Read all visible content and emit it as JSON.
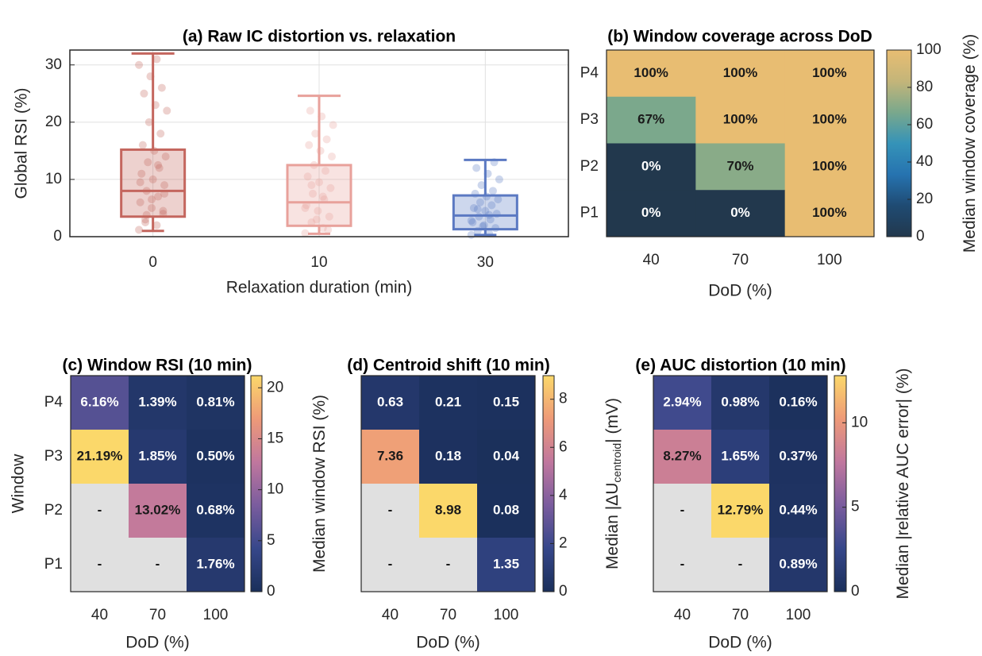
{
  "chart_data": [
    {
      "type": "box",
      "title": "(a) Raw IC distortion vs. relaxation",
      "xlabel": "Relaxation duration (min)",
      "ylabel": "Global RSI (%)",
      "categories": [
        "0",
        "10",
        "30"
      ],
      "colors": [
        "#c4665e",
        "#e8a19b",
        "#5b79c2"
      ],
      "boxes": [
        {
          "low": 1,
          "q1": 3.5,
          "median": 8,
          "q3": 15.2,
          "high": 32
        },
        {
          "low": 0.5,
          "q1": 1.9,
          "median": 6,
          "q3": 12.5,
          "high": 24.6
        },
        {
          "low": 0.3,
          "q1": 1.3,
          "median": 3.7,
          "q3": 7.2,
          "high": 13.4
        }
      ],
      "points": [
        [
          1.2,
          2,
          3,
          4,
          5,
          6,
          7,
          8,
          9,
          10,
          11,
          12,
          13,
          14,
          15,
          16,
          18,
          20,
          22,
          23,
          25,
          26,
          28,
          30,
          31,
          2.5,
          4.5,
          6.5,
          9.5,
          12.5,
          3.8,
          7.5
        ],
        [
          0.6,
          1.5,
          2.5,
          3.5,
          4.5,
          5.5,
          6.5,
          7.5,
          8.5,
          9.5,
          10.5,
          11.5,
          12.5,
          14,
          15,
          16,
          17,
          18,
          19.5,
          21,
          22,
          1.2,
          3,
          5,
          7,
          9
        ],
        [
          0.3,
          0.6,
          1,
          1.5,
          2,
          2.5,
          3,
          3.5,
          4,
          4.5,
          5,
          5.5,
          6,
          6.5,
          7,
          7.5,
          8,
          9,
          10,
          11,
          12,
          13,
          1.8,
          2.8,
          3.8,
          4.8
        ]
      ],
      "ylim": [
        0,
        32.6
      ],
      "yticks": [
        0,
        10,
        20,
        30
      ],
      "grid": true
    },
    {
      "type": "heatmap",
      "title": "(b) Window coverage across DoD",
      "xlabel": "DoD (%)",
      "cbar_label": [
        "Median window coverage (%)"
      ],
      "x_categories": [
        "40",
        "70",
        "100"
      ],
      "y_categories": [
        "P4",
        "P3",
        "P2",
        "P1"
      ],
      "values": [
        [
          100,
          100,
          100
        ],
        [
          67,
          100,
          100
        ],
        [
          0,
          70,
          100
        ],
        [
          0,
          0,
          100
        ]
      ],
      "value_labels": [
        [
          "100%",
          "100%",
          "100%"
        ],
        [
          "67%",
          "100%",
          "100%"
        ],
        [
          "0%",
          "70%",
          "100%"
        ],
        [
          "0%",
          "0%",
          "100%"
        ]
      ],
      "clim": [
        0,
        100
      ],
      "cticks": [
        0,
        20,
        40,
        60,
        80,
        100
      ],
      "colormap": [
        "#22384d",
        "#1f4b73",
        "#2673b0",
        "#3593b8",
        "#7aa88c",
        "#c4b579",
        "#e8bd72"
      ],
      "missing_color": "#e0e0e0"
    },
    {
      "type": "heatmap",
      "title": "(c) Window RSI (10 min)",
      "xlabel": "DoD (%)",
      "ylabel": "Window",
      "cbar_label": [
        "Median window RSI (%)"
      ],
      "x_categories": [
        "40",
        "70",
        "100"
      ],
      "y_categories": [
        "P4",
        "P3",
        "P2",
        "P1"
      ],
      "values": [
        [
          6.16,
          1.39,
          0.81
        ],
        [
          21.19,
          1.85,
          0.5
        ],
        [
          null,
          13.02,
          0.68
        ],
        [
          null,
          null,
          1.76
        ]
      ],
      "value_labels": [
        [
          "6.16%",
          "1.39%",
          "0.81%"
        ],
        [
          "21.19%",
          "1.85%",
          "0.50%"
        ],
        [
          "-",
          "13.02%",
          "0.68%"
        ],
        [
          "-",
          "-",
          "1.76%"
        ]
      ],
      "clim": [
        0,
        21.19
      ],
      "cticks": [
        0,
        5,
        10,
        15,
        20
      ],
      "colormap": [
        "#1a2f5a",
        "#36478a",
        "#7a5c9e",
        "#c0779e",
        "#ee9a78",
        "#fbd86a"
      ],
      "missing_color": "#e0e0e0"
    },
    {
      "type": "heatmap",
      "title": "(d) Centroid shift (10 min)",
      "xlabel": "DoD (%)",
      "cbar_label": [
        "Median |ΔU",
        "centroid",
        "| (mV)"
      ],
      "x_categories": [
        "40",
        "70",
        "100"
      ],
      "values": [
        [
          0.63,
          0.21,
          0.15
        ],
        [
          7.36,
          0.18,
          0.04
        ],
        [
          null,
          8.98,
          0.08
        ],
        [
          null,
          null,
          1.35
        ]
      ],
      "value_labels": [
        [
          "0.63",
          "0.21",
          "0.15"
        ],
        [
          "7.36",
          "0.18",
          "0.04"
        ],
        [
          "-",
          "8.98",
          "0.08"
        ],
        [
          "-",
          "-",
          "1.35"
        ]
      ],
      "clim": [
        0,
        8.98
      ],
      "cticks": [
        0,
        2,
        4,
        6,
        8
      ],
      "colormap": [
        "#1a2f5a",
        "#36478a",
        "#7a5c9e",
        "#c0779e",
        "#ee9a78",
        "#fbd86a"
      ],
      "missing_color": "#e0e0e0"
    },
    {
      "type": "heatmap",
      "title": "(e) AUC distortion (10 min)",
      "xlabel": "DoD (%)",
      "cbar_label": [
        "Median |relative AUC error| (%)"
      ],
      "x_categories": [
        "40",
        "70",
        "100"
      ],
      "values": [
        [
          2.94,
          0.98,
          0.16
        ],
        [
          8.27,
          1.65,
          0.37
        ],
        [
          null,
          12.79,
          0.44
        ],
        [
          null,
          null,
          0.89
        ]
      ],
      "value_labels": [
        [
          "2.94%",
          "0.98%",
          "0.16%"
        ],
        [
          "8.27%",
          "1.65%",
          "0.37%"
        ],
        [
          "-",
          "12.79%",
          "0.44%"
        ],
        [
          "-",
          "-",
          "0.89%"
        ]
      ],
      "clim": [
        0,
        12.79
      ],
      "cticks": [
        0,
        5,
        10
      ],
      "colormap": [
        "#1a2f5a",
        "#36478a",
        "#7a5c9e",
        "#c0779e",
        "#ee9a78",
        "#fbd86a"
      ],
      "missing_color": "#e0e0e0"
    }
  ]
}
